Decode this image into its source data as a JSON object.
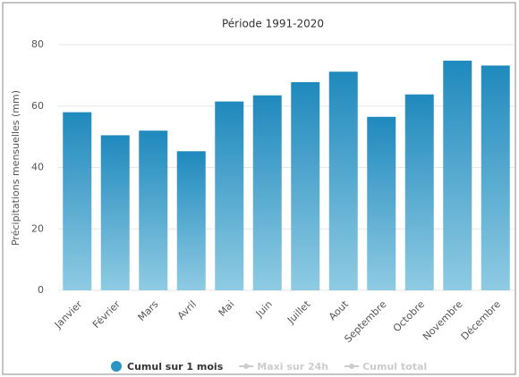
{
  "chart_data": {
    "type": "bar",
    "title": "Période 1991-2020",
    "ylabel": "Précipitations mensuelles (mm)",
    "categories": [
      "Janvier",
      "Février",
      "Mars",
      "Avril",
      "Mai",
      "Juin",
      "Juillet",
      "Aout",
      "Septembre",
      "Octobre",
      "Novembre",
      "Décembre"
    ],
    "values": [
      58,
      50.5,
      52,
      45.3,
      61.5,
      63.5,
      67.8,
      71.2,
      56.5,
      63.8,
      74.8,
      73.2
    ],
    "color": "#2a93c4",
    "ylim": [
      0,
      80
    ],
    "yticks": [
      0,
      20,
      40,
      60,
      80
    ],
    "grid": true,
    "legend": [
      {
        "name": "Cumul sur 1 mois",
        "color": "#2a93c4",
        "active": true
      },
      {
        "name": "Maxi sur 24h",
        "color": "#cccccc",
        "active": false
      },
      {
        "name": "Cumul total",
        "color": "#cccccc",
        "active": false
      }
    ]
  }
}
